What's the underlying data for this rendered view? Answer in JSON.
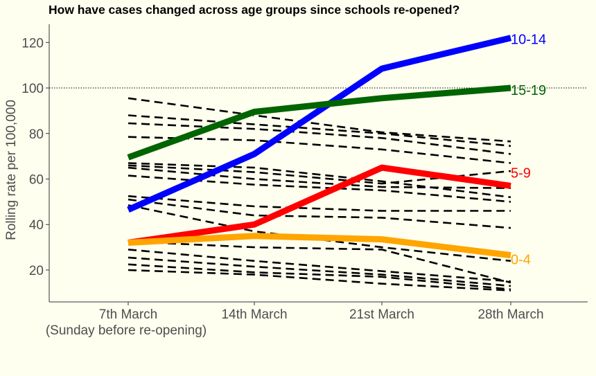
{
  "chart_data": {
    "type": "line",
    "title": "How have cases changed across age groups since schools re-opened?",
    "xlabel": "",
    "ylabel": "Rolling rate per 100,000",
    "categories": [
      "7th March",
      "14th March",
      "21st March",
      "28th March"
    ],
    "category_sublabels": [
      "(Sunday before re-opening)",
      "",
      "",
      ""
    ],
    "yticks": [
      20,
      40,
      60,
      80,
      100,
      120
    ],
    "ylim": [
      6,
      128
    ],
    "reference_line": {
      "y": 100,
      "style": "dotted"
    },
    "grid": false,
    "legend": "none",
    "series": [
      {
        "name": "10-14",
        "color": "#0000ff",
        "values": [
          46.5,
          71,
          108.5,
          122
        ]
      },
      {
        "name": "15-19",
        "color": "#006400",
        "values": [
          69.5,
          89.5,
          95.5,
          100
        ]
      },
      {
        "name": "5-9",
        "color": "#ff0000",
        "values": [
          32,
          40,
          65,
          57
        ]
      },
      {
        "name": "0-4",
        "color": "#ffa500",
        "values": [
          32,
          35,
          33.5,
          26.5
        ]
      }
    ],
    "other_series": [
      [
        95.5,
        88,
        80.5,
        76.5
      ],
      [
        88,
        84,
        80,
        74.5
      ],
      [
        84.5,
        82,
        78,
        71
      ],
      [
        78.5,
        77,
        73,
        67
      ],
      [
        67,
        65,
        59,
        52
      ],
      [
        66,
        63,
        58,
        63.5
      ],
      [
        65,
        60,
        56.5,
        56
      ],
      [
        61.5,
        57.5,
        55,
        50
      ],
      [
        52.5,
        48,
        46,
        46
      ],
      [
        51,
        44,
        43,
        38.5
      ],
      [
        48.5,
        37,
        30,
        24
      ],
      [
        32.5,
        30,
        29,
        14.5
      ],
      [
        29,
        24,
        19.5,
        15
      ],
      [
        25.5,
        21.5,
        18,
        13
      ],
      [
        22.5,
        19,
        17,
        11.5
      ],
      [
        20,
        18,
        14,
        11
      ]
    ]
  }
}
